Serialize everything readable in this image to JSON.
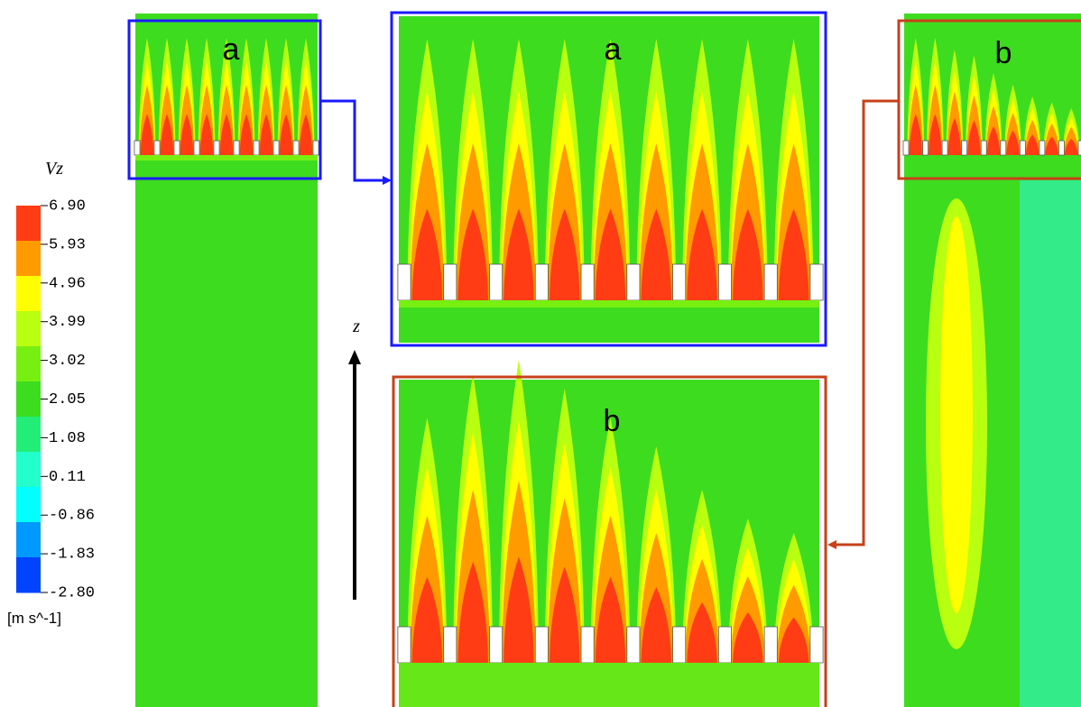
{
  "legend": {
    "title": "Vz",
    "labels": [
      "6.90",
      "5.93",
      "4.96",
      "3.99",
      "3.02",
      "2.05",
      "1.08",
      "0.11",
      "-0.86",
      "-1.83",
      "-2.80"
    ],
    "unit": "[m  s^-1]"
  },
  "panels": {
    "left_label": "a",
    "zoom_top_label": "a",
    "right_label": "b",
    "zoom_bottom_label": "b"
  },
  "axis": {
    "label": "z"
  }
}
